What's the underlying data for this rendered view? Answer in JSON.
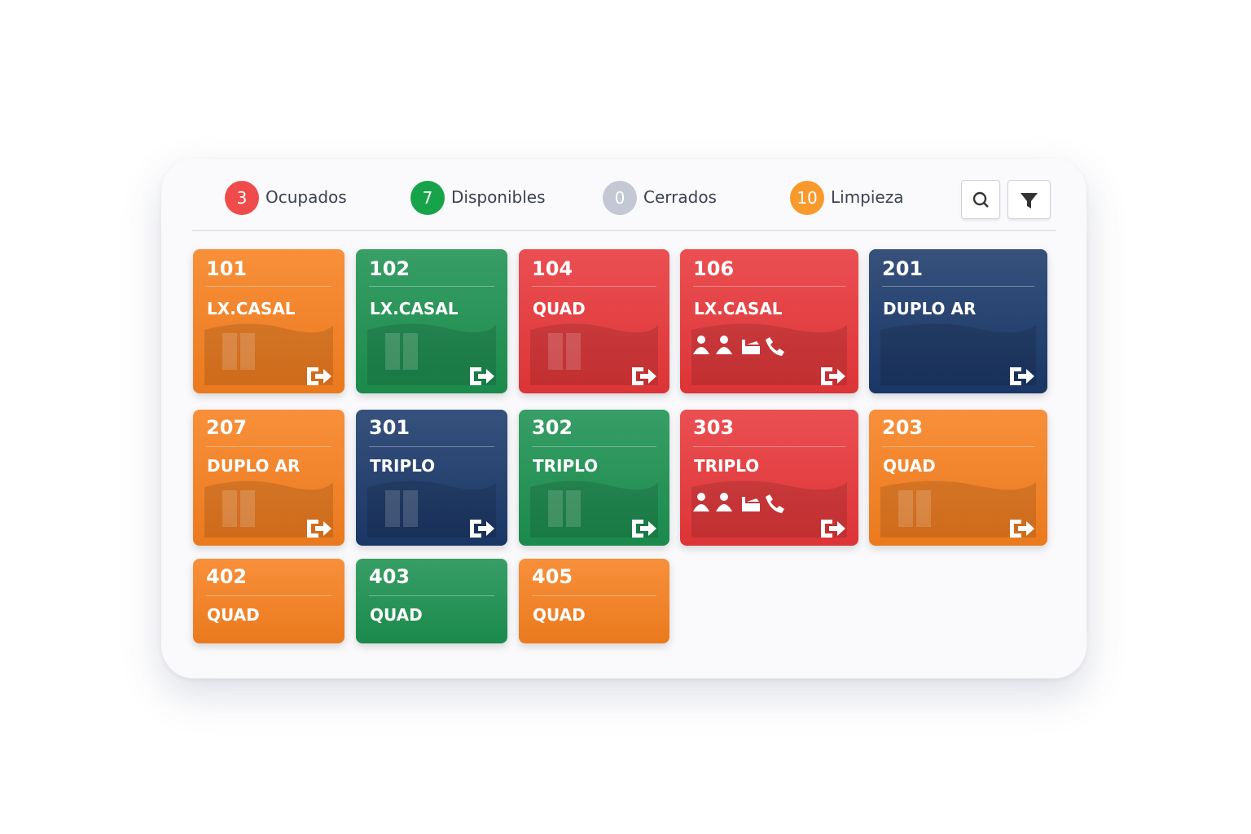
{
  "status_bar": [
    {
      "count": 3,
      "label": "Ocupados",
      "color": "#ef4b4b"
    },
    {
      "count": 7,
      "label": "Disponibles",
      "color": "#17a34a"
    },
    {
      "count": 0,
      "label": "Cerrados",
      "color": "#c3c8d4"
    },
    {
      "count": 10,
      "label": "Limpieza",
      "color": "#f89a2b"
    }
  ],
  "rooms": [
    {
      "number": "101",
      "type": "LX.CASAL",
      "color": "#f7801f",
      "panel": "door"
    },
    {
      "number": "102",
      "type": "LX.CASAL",
      "color": "#1c9150",
      "panel": "door"
    },
    {
      "number": "104",
      "type": "QUAD",
      "color": "#e8373a",
      "panel": "door"
    },
    {
      "number": "106",
      "type": "LX.CASAL",
      "color": "#e8373a",
      "panel": "guest"
    },
    {
      "number": "201",
      "type": "DUPLO AR",
      "color": "#1b396a",
      "panel": "empty"
    },
    {
      "number": "207",
      "type": "DUPLO AR",
      "color": "#f7801f",
      "panel": "door"
    },
    {
      "number": "301",
      "type": "TRIPLO",
      "color": "#1b396a",
      "panel": "door"
    },
    {
      "number": "302",
      "type": "TRIPLO",
      "color": "#1c9150",
      "panel": "door"
    },
    {
      "number": "303",
      "type": "TRIPLO",
      "color": "#e8373a",
      "panel": "guest"
    },
    {
      "number": "203",
      "type": "QUAD",
      "color": "#f7801f",
      "panel": "door"
    },
    {
      "number": "402",
      "type": "QUAD",
      "color": "#f7801f",
      "panel": "none"
    },
    {
      "number": "403",
      "type": "QUAD",
      "color": "#1c9150",
      "panel": "none"
    },
    {
      "number": "405",
      "type": "QUAD",
      "color": "#f7801f",
      "panel": "none"
    }
  ]
}
